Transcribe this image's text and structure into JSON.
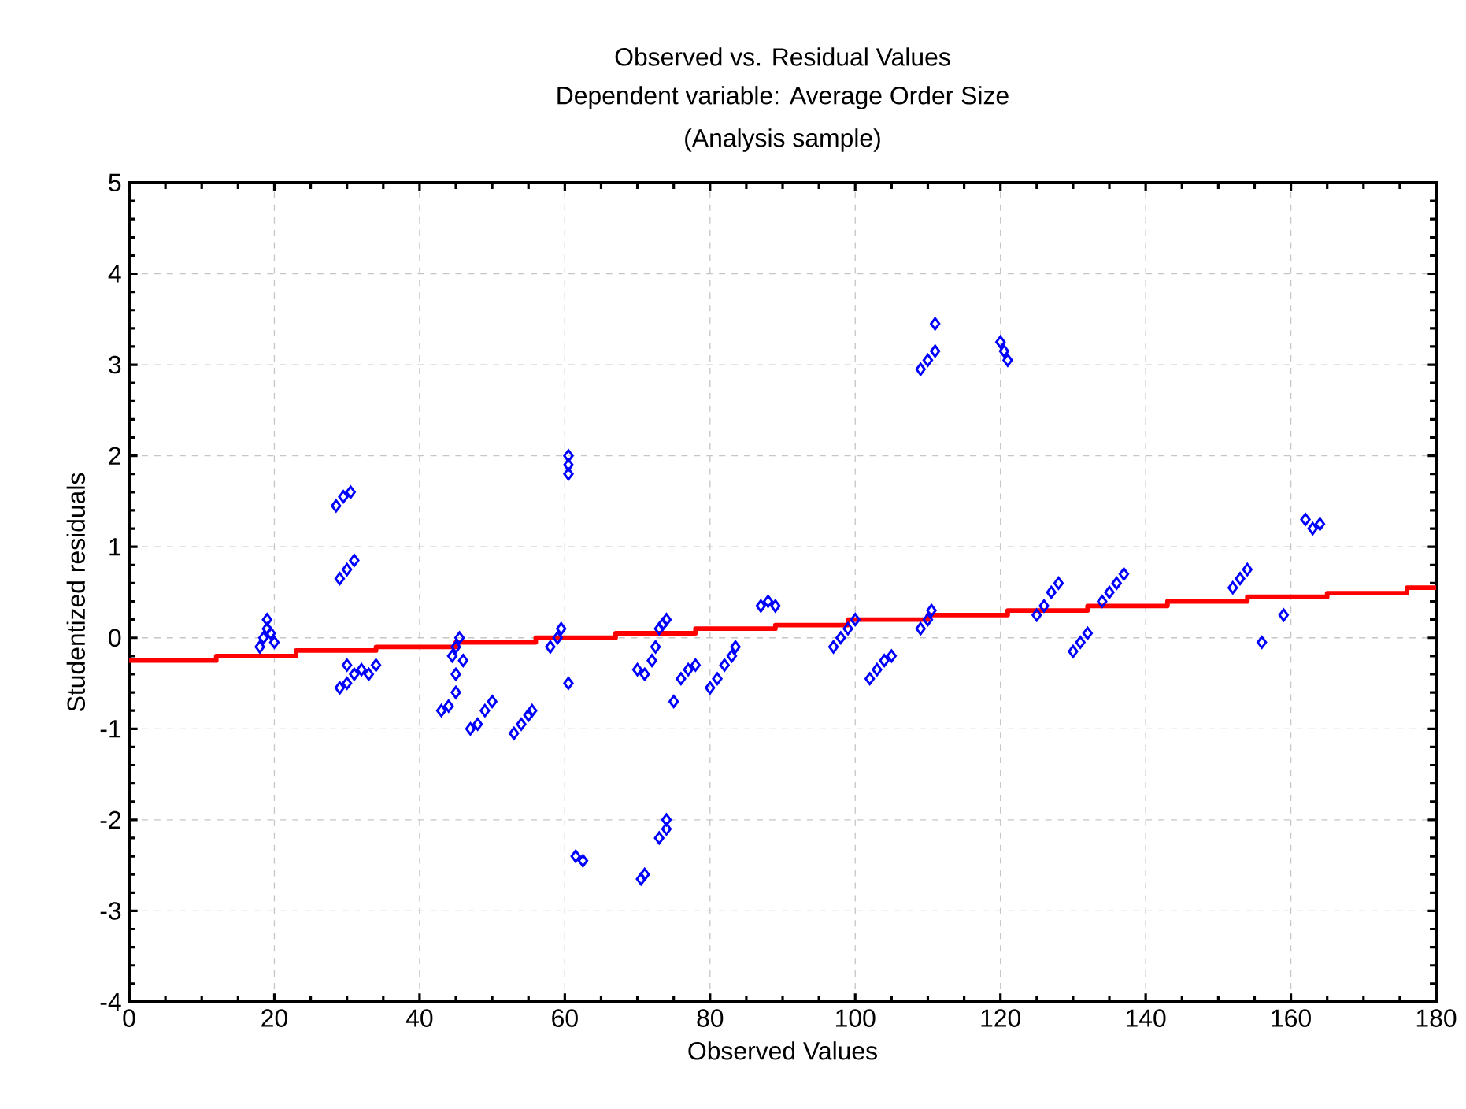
{
  "chart_data": {
    "type": "scatter",
    "title": "Observed vs. Residual Values",
    "subtitle": "Dependent variable: Average Order Size",
    "annotations": [
      "(Analysis sample)"
    ],
    "xlabel": "Observed Values",
    "ylabel": "Studentized residuals",
    "xlim": [
      0,
      180
    ],
    "ylim": [
      -4,
      5
    ],
    "xticks": [
      0,
      20,
      40,
      60,
      80,
      100,
      120,
      140,
      160,
      180
    ],
    "yticks": [
      -4,
      -3,
      -2,
      -1,
      0,
      1,
      2,
      3,
      4,
      5
    ],
    "grid": true,
    "marker": "diamond",
    "series": [
      {
        "color": "#0000ff",
        "x": [
          18,
          18.5,
          19,
          19.5,
          20,
          19,
          28.5,
          29.5,
          30.5,
          29,
          30,
          31,
          29,
          30,
          31,
          30,
          33,
          34,
          32,
          43,
          44,
          45,
          45,
          44.5,
          45,
          45.5,
          46,
          47,
          48,
          49,
          50,
          53,
          54,
          55,
          55.5,
          58,
          59,
          59.5,
          60.5,
          60.5,
          60.5,
          60.5,
          61.5,
          62.5,
          70,
          71,
          72,
          72.5,
          73,
          74,
          73.5,
          70.5,
          71,
          73,
          74,
          74,
          75,
          76,
          77,
          78,
          80,
          81,
          82,
          83,
          83.5,
          87,
          88,
          89,
          97,
          98,
          99,
          100,
          102,
          103,
          104,
          105,
          109,
          110,
          110.5,
          109,
          110,
          111,
          111,
          120,
          120.5,
          121,
          125,
          126,
          127,
          128,
          130,
          131,
          132,
          134,
          135,
          136,
          137,
          152,
          153,
          154,
          156,
          159,
          162,
          163,
          164
        ],
        "values": [
          -0.1,
          0,
          0.1,
          0.05,
          -0.05,
          0.2,
          1.45,
          1.55,
          1.6,
          0.65,
          0.75,
          0.85,
          -0.55,
          -0.5,
          -0.4,
          -0.3,
          -0.4,
          -0.3,
          -0.35,
          -0.8,
          -0.75,
          -0.6,
          -0.4,
          -0.2,
          -0.1,
          0,
          -0.25,
          -1.0,
          -0.95,
          -0.8,
          -0.7,
          -1.05,
          -0.95,
          -0.85,
          -0.8,
          -0.1,
          0,
          0.1,
          1.8,
          1.9,
          2.0,
          -0.5,
          -2.4,
          -2.45,
          -0.35,
          -0.4,
          -0.25,
          -0.1,
          0.1,
          0.2,
          0.15,
          -2.65,
          -2.6,
          -2.2,
          -2.1,
          -2.0,
          -0.7,
          -0.45,
          -0.35,
          -0.3,
          -0.55,
          -0.45,
          -0.3,
          -0.2,
          -0.1,
          0.35,
          0.4,
          0.35,
          -0.1,
          0,
          0.1,
          0.2,
          -0.45,
          -0.35,
          -0.25,
          -0.2,
          0.1,
          0.2,
          0.3,
          2.95,
          3.05,
          3.15,
          3.45,
          3.25,
          3.15,
          3.05,
          0.25,
          0.35,
          0.5,
          0.6,
          -0.15,
          -0.05,
          0.05,
          0.4,
          0.5,
          0.6,
          0.7,
          0.55,
          0.65,
          0.75,
          -0.05,
          0.25,
          1.3,
          1.2,
          1.25
        ]
      },
      {
        "type": "step",
        "color": "#ff0000",
        "marker": "none",
        "x": [
          0,
          12,
          23,
          34,
          45,
          56,
          67,
          78,
          89,
          99,
          110,
          121,
          132,
          143,
          154,
          165,
          176,
          180
        ],
        "values": [
          -0.25,
          -0.2,
          -0.14,
          -0.1,
          -0.05,
          0,
          0.05,
          0.1,
          0.14,
          0.2,
          0.25,
          0.3,
          0.35,
          0.4,
          0.45,
          0.49,
          0.55,
          0.55
        ]
      }
    ]
  }
}
